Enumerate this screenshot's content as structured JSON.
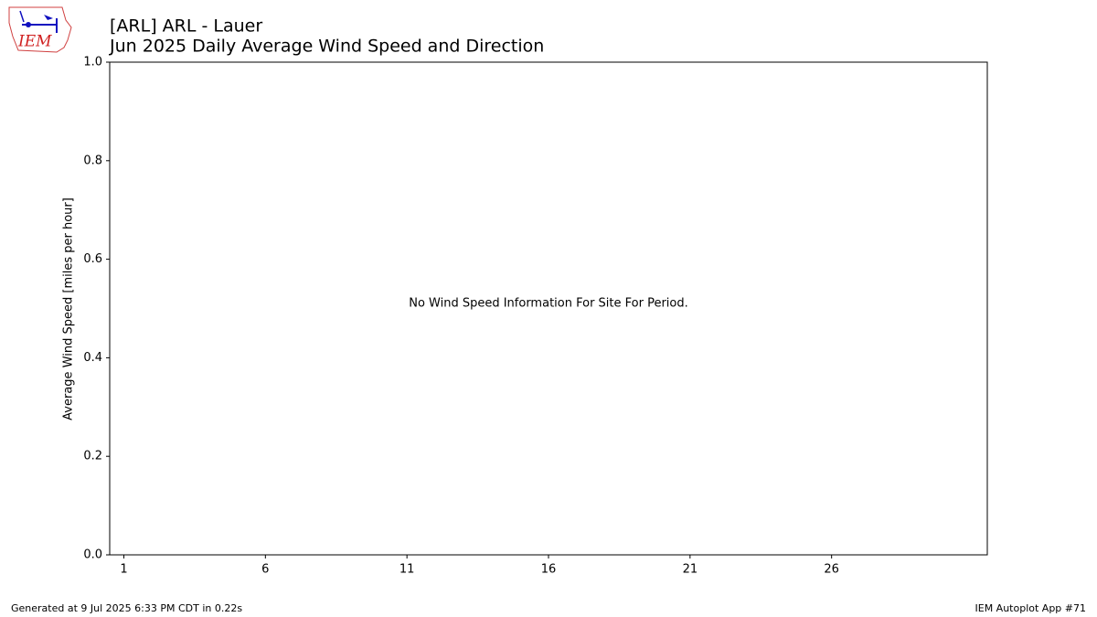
{
  "chart_data": {
    "type": "line",
    "title": [
      "[ARL] ARL - Lauer",
      "Jun 2025 Daily Average Wind Speed and Direction"
    ],
    "ylabel": "Average Wind Speed [miles per hour]",
    "annotation": "No Wind Speed Information For Site For Period.",
    "xlim": [
      0.5,
      31.5
    ],
    "xticks": [
      1,
      6,
      11,
      16,
      21,
      26
    ],
    "ylim": [
      0,
      1
    ],
    "yticks": [
      {
        "value": 0,
        "label": "0.0"
      },
      {
        "value": 0.2,
        "label": "0.2"
      },
      {
        "value": 0.4,
        "label": "0.4"
      },
      {
        "value": 0.6,
        "label": "0.6"
      },
      {
        "value": 0.8,
        "label": "0.8"
      },
      {
        "value": 1,
        "label": "1.0"
      }
    ],
    "grid": false
  },
  "logo": "IEM",
  "footer": {
    "left": "Generated at 9 Jul 2025 6:33 PM CDT in 0.22s",
    "right": "IEM Autoplot App #71"
  }
}
